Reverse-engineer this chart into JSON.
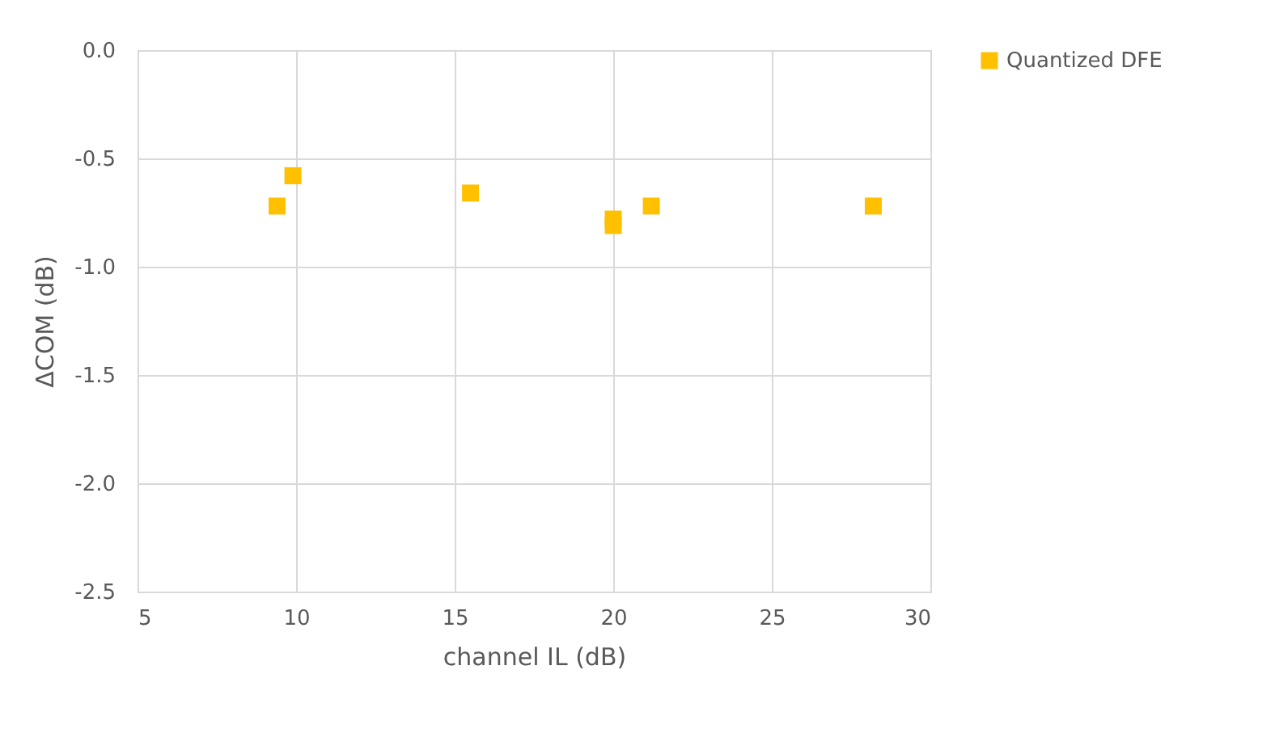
{
  "chart_data": {
    "type": "scatter",
    "xlabel": "channel IL (dB)",
    "ylabel": "ΔCOM (dB)",
    "x": [
      9.4,
      9.9,
      15.5,
      20.0,
      20.0,
      21.2,
      28.2
    ],
    "series": [
      {
        "name": "Quantized DFE",
        "color": "#ffc000",
        "values": [
          -0.72,
          -0.58,
          -0.66,
          -0.78,
          -0.81,
          -0.72,
          -0.72
        ]
      }
    ],
    "xlim": [
      5,
      30
    ],
    "xticks": [
      5,
      10,
      15,
      20,
      25,
      30
    ],
    "ylim": [
      -2.5,
      0.0
    ],
    "yticks": [
      {
        "value": -2.5,
        "label": "-2.5"
      },
      {
        "value": -2.0,
        "label": "-2.0"
      },
      {
        "value": -1.5,
        "label": "-1.5"
      },
      {
        "value": -1.0,
        "label": "-1.0"
      },
      {
        "value": -0.5,
        "label": "-0.5"
      },
      {
        "value": 0.0,
        "label": "0.0"
      }
    ],
    "grid": true,
    "legend": "right",
    "marker": "square"
  }
}
